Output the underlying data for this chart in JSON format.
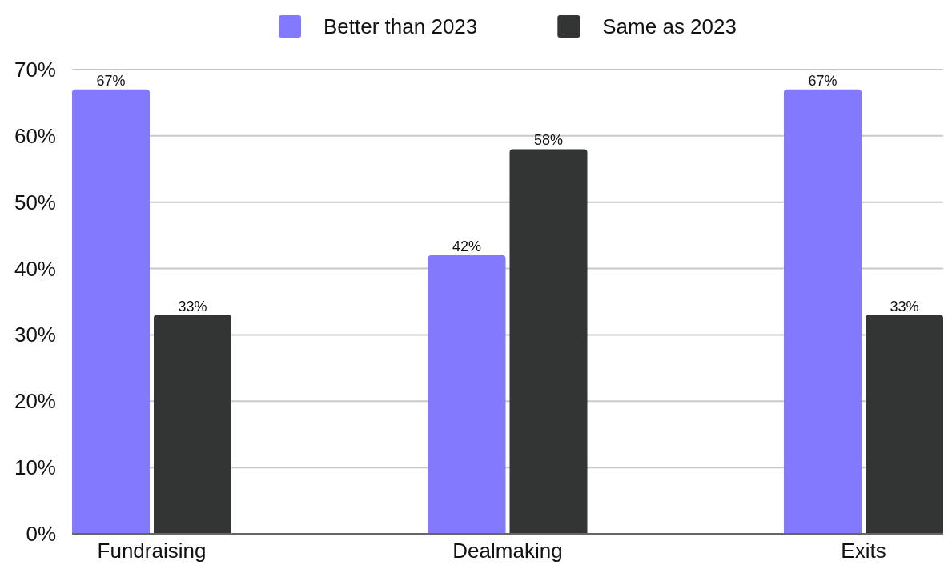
{
  "chart_data": {
    "type": "bar",
    "categories": [
      "Fundraising",
      "Dealmaking",
      "Exits"
    ],
    "series": [
      {
        "name": "Better than 2023",
        "color": "#8379ff",
        "values": [
          67,
          42,
          67
        ],
        "value_labels": [
          "67%",
          "42%",
          "67%"
        ]
      },
      {
        "name": "Same as 2023",
        "color": "#333534",
        "values": [
          33,
          58,
          33
        ],
        "value_labels": [
          "33%",
          "58%",
          "33%"
        ]
      }
    ],
    "ylim": [
      0,
      70
    ],
    "yticks": [
      {
        "value": 0,
        "label": "0%"
      },
      {
        "value": 10,
        "label": "10%"
      },
      {
        "value": 20,
        "label": "20%"
      },
      {
        "value": 30,
        "label": "30%"
      },
      {
        "value": 40,
        "label": "40%"
      },
      {
        "value": 50,
        "label": "50%"
      },
      {
        "value": 60,
        "label": "60%"
      },
      {
        "value": 70,
        "label": "70%"
      }
    ],
    "grid": "y",
    "legend": "top"
  }
}
